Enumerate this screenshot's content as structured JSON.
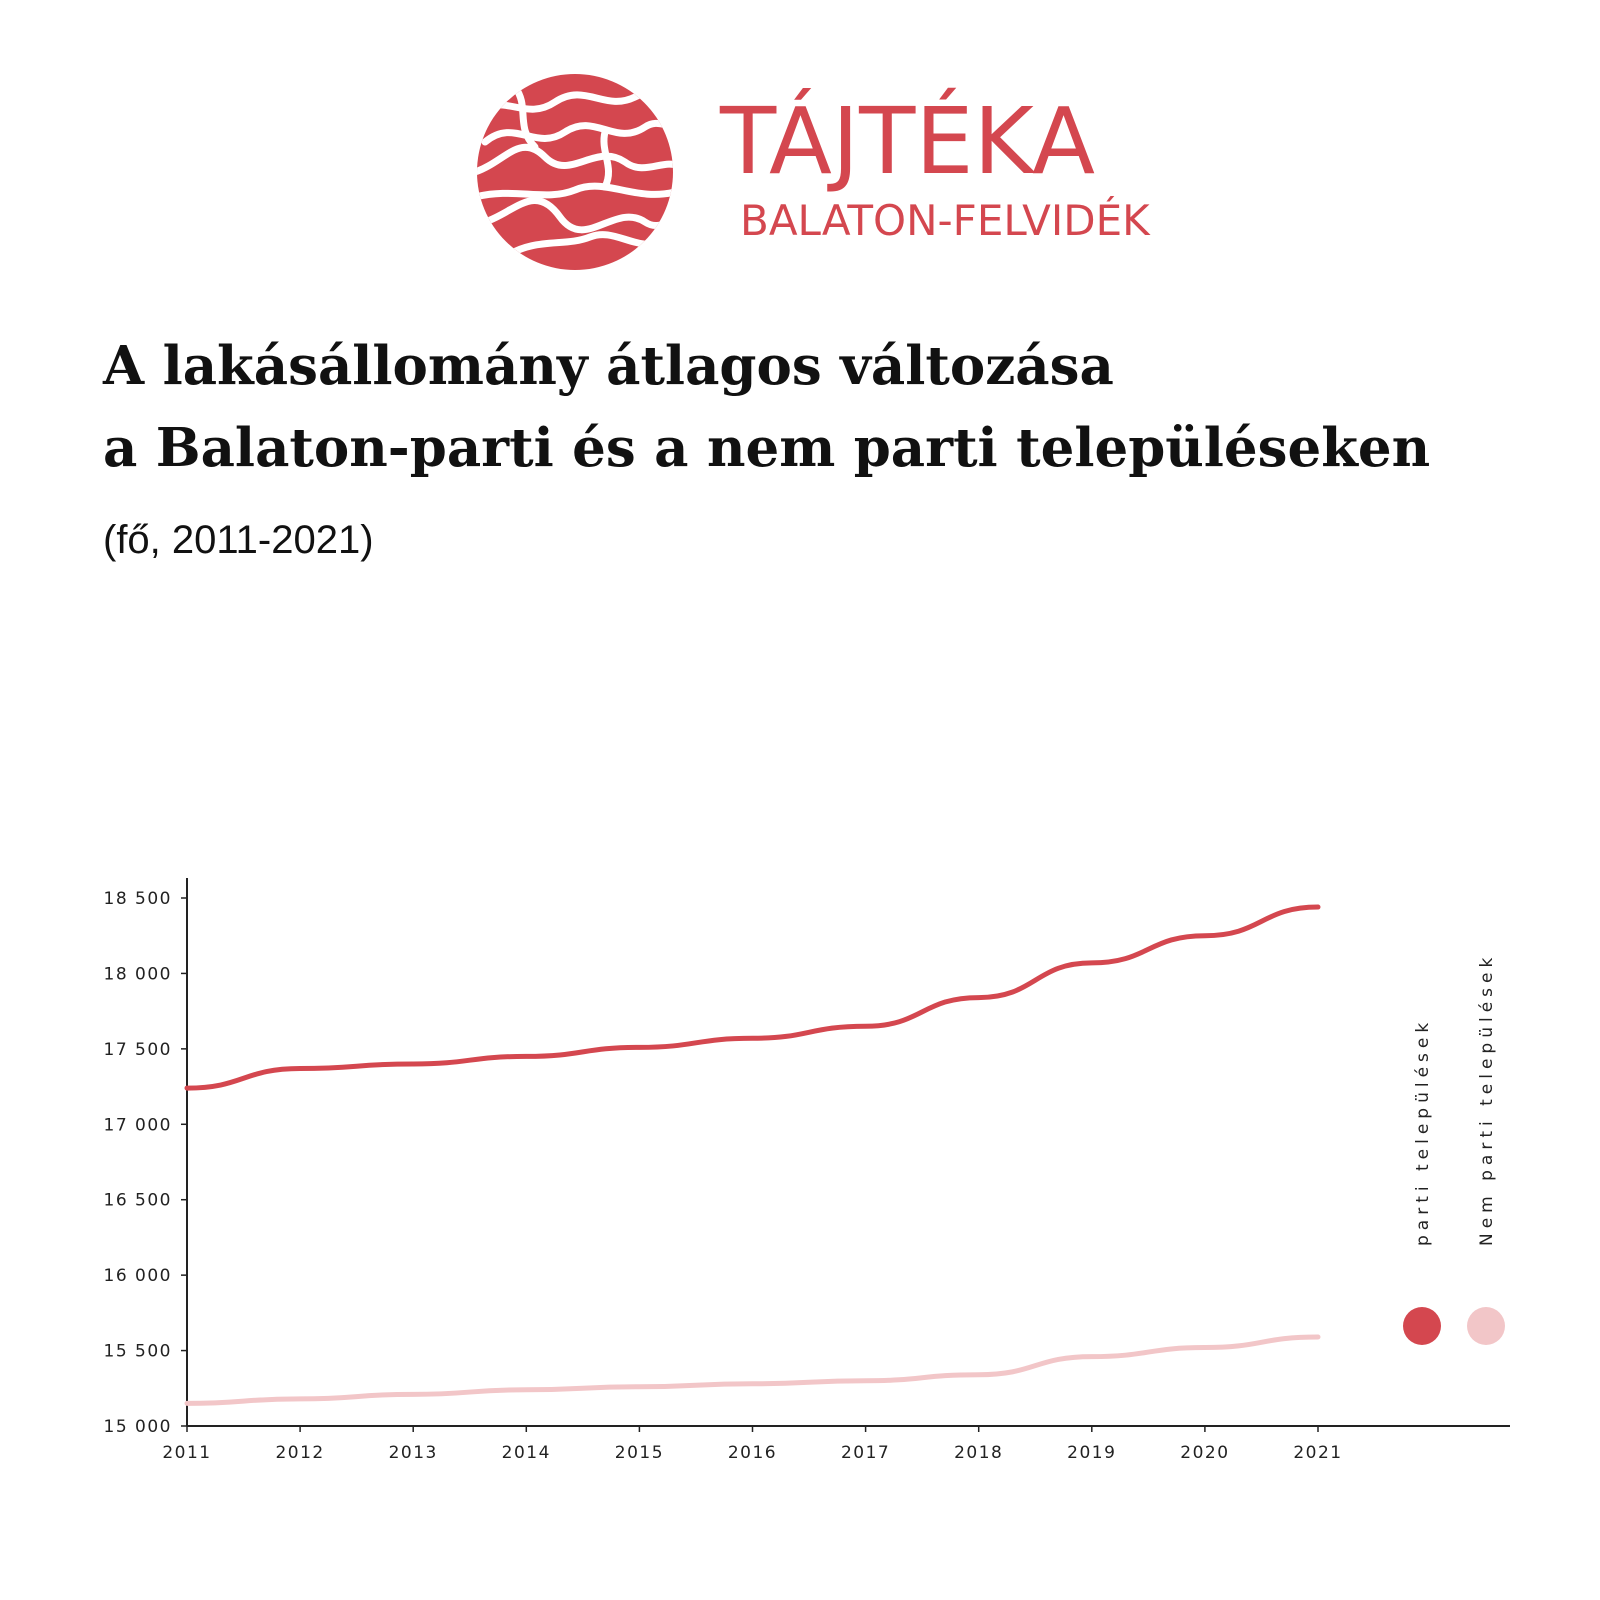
{
  "brand": {
    "name": "TÁJTÉKA",
    "subtitle": "BALATON-FELVIDÉK",
    "color": "#d4474f"
  },
  "header": {
    "title_line1": "A lakásállomány átlagos változása",
    "title_line2": "a Balaton-parti és a nem parti településeken",
    "subtitle": "(fő, 2011-2021)"
  },
  "chart_data": {
    "type": "line",
    "x": [
      "2011",
      "2012",
      "2013",
      "2014",
      "2015",
      "2016",
      "2017",
      "2018",
      "2019",
      "2020",
      "2021"
    ],
    "ylim": [
      15000,
      18500
    ],
    "y_ticks": [
      "15 000",
      "15 500",
      "16 000",
      "16 500",
      "17 000",
      "17 500",
      "18 000",
      "18 500"
    ],
    "y_tick_values": [
      15000,
      15500,
      16000,
      16500,
      17000,
      17500,
      18000,
      18500
    ],
    "grid": false,
    "legend_position": "right",
    "series": [
      {
        "name": "parti települések",
        "color": "#d4474f",
        "values": [
          17240,
          17370,
          17400,
          17450,
          17510,
          17570,
          17650,
          17840,
          18070,
          18250,
          18440
        ]
      },
      {
        "name": "Nem parti települések",
        "color": "#f2c6c8",
        "values": [
          15150,
          15180,
          15210,
          15240,
          15260,
          15280,
          15300,
          15340,
          15460,
          15520,
          15590
        ]
      }
    ]
  }
}
